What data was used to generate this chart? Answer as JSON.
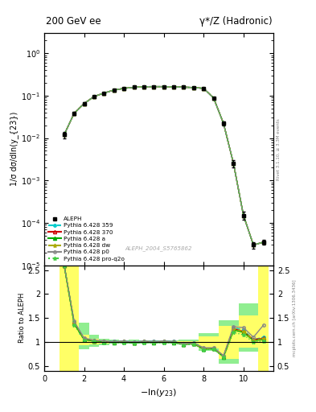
{
  "title_left": "200 GeV ee",
  "title_right": "γ*/Z (Hadronic)",
  "ylabel_main": "1/σ dσ/dln(y_{23})",
  "ylabel_ratio": "Ratio to ALEPH",
  "xlabel": "-ln(y_{23})",
  "right_label": "Rivet 3.1.10, ≥ 3.3M events",
  "right_label2": "mcplots.cern.ch [arXiv:1306.3436]",
  "ref_label": "ALEPH_2004_S5765862",
  "xlim": [
    0,
    11.5
  ],
  "ylim_main": [
    1e-05,
    3.0
  ],
  "ylim_ratio": [
    0.4,
    2.6
  ],
  "ratio_yticks": [
    0.5,
    1.0,
    1.5,
    2.0,
    2.5
  ],
  "data_x": [
    1.0,
    1.5,
    2.0,
    2.5,
    3.0,
    3.5,
    4.0,
    4.5,
    5.0,
    5.5,
    6.0,
    6.5,
    7.0,
    7.5,
    8.0,
    8.5,
    9.0,
    9.5,
    10.0,
    10.5,
    11.0
  ],
  "data_y": [
    0.012,
    0.038,
    0.065,
    0.095,
    0.115,
    0.135,
    0.148,
    0.157,
    0.162,
    0.163,
    0.163,
    0.16,
    0.158,
    0.155,
    0.148,
    0.088,
    0.022,
    0.0025,
    0.00015,
    3e-05,
    3.5e-05
  ],
  "data_yerr_low": [
    0.002,
    0.004,
    0.004,
    0.004,
    0.004,
    0.004,
    0.004,
    0.004,
    0.004,
    0.004,
    0.004,
    0.004,
    0.004,
    0.004,
    0.004,
    0.004,
    0.002,
    0.0005,
    3e-05,
    5e-06,
    5e-06
  ],
  "data_yerr_high": [
    0.002,
    0.004,
    0.004,
    0.004,
    0.004,
    0.004,
    0.004,
    0.004,
    0.004,
    0.004,
    0.004,
    0.004,
    0.004,
    0.004,
    0.004,
    0.004,
    0.002,
    0.0005,
    3e-05,
    5e-06,
    5e-06
  ],
  "mc_x": [
    1.0,
    1.5,
    2.0,
    2.5,
    3.0,
    3.5,
    4.0,
    4.5,
    5.0,
    5.5,
    6.0,
    6.5,
    7.0,
    7.5,
    8.0,
    8.5,
    9.0,
    9.5,
    10.0,
    10.5,
    11.0
  ],
  "mc359_y": [
    0.012,
    0.038,
    0.065,
    0.095,
    0.115,
    0.135,
    0.148,
    0.157,
    0.162,
    0.163,
    0.163,
    0.16,
    0.158,
    0.155,
    0.148,
    0.088,
    0.022,
    0.0025,
    0.00015,
    3e-05,
    3.5e-05
  ],
  "mc370_y": [
    0.012,
    0.038,
    0.065,
    0.095,
    0.115,
    0.135,
    0.148,
    0.157,
    0.162,
    0.163,
    0.163,
    0.16,
    0.158,
    0.155,
    0.148,
    0.088,
    0.022,
    0.0025,
    0.00015,
    3e-05,
    3.5e-05
  ],
  "mca_y": [
    0.012,
    0.038,
    0.065,
    0.095,
    0.115,
    0.135,
    0.148,
    0.157,
    0.162,
    0.163,
    0.163,
    0.16,
    0.158,
    0.155,
    0.148,
    0.088,
    0.022,
    0.0025,
    0.00015,
    3e-05,
    3.5e-05
  ],
  "mcdw_y": [
    0.012,
    0.038,
    0.065,
    0.095,
    0.115,
    0.135,
    0.148,
    0.157,
    0.162,
    0.163,
    0.163,
    0.16,
    0.158,
    0.155,
    0.148,
    0.088,
    0.022,
    0.0025,
    0.00015,
    3e-05,
    3.5e-05
  ],
  "mcp0_y": [
    0.012,
    0.038,
    0.065,
    0.095,
    0.115,
    0.135,
    0.148,
    0.157,
    0.162,
    0.163,
    0.163,
    0.16,
    0.158,
    0.155,
    0.148,
    0.088,
    0.022,
    0.0025,
    0.00015,
    3e-05,
    3.5e-05
  ],
  "mcproq2o_y": [
    0.012,
    0.038,
    0.065,
    0.095,
    0.115,
    0.135,
    0.148,
    0.157,
    0.162,
    0.163,
    0.163,
    0.16,
    0.158,
    0.155,
    0.148,
    0.088,
    0.022,
    0.0025,
    0.00015,
    3e-05,
    3.5e-05
  ],
  "ratio_mc359": [
    2.6,
    1.42,
    1.07,
    1.03,
    1.02,
    1.01,
    1.02,
    1.0,
    1.02,
    1.01,
    1.02,
    1.01,
    0.96,
    0.98,
    0.87,
    0.87,
    0.7,
    1.3,
    1.25,
    1.05,
    1.1
  ],
  "ratio_mc370": [
    2.6,
    1.4,
    1.06,
    1.02,
    1.01,
    1.0,
    1.01,
    0.99,
    1.01,
    1.0,
    1.01,
    1.0,
    0.95,
    0.97,
    0.86,
    0.87,
    0.7,
    1.28,
    1.22,
    1.05,
    1.08
  ],
  "ratio_mca": [
    2.6,
    1.38,
    1.05,
    1.02,
    1.0,
    0.99,
    1.0,
    0.98,
    1.0,
    0.99,
    1.0,
    0.99,
    0.95,
    0.96,
    0.85,
    0.86,
    0.69,
    1.25,
    1.2,
    1.03,
    1.05
  ],
  "ratio_mcdw": [
    2.6,
    1.41,
    1.07,
    1.03,
    1.01,
    1.0,
    1.01,
    0.99,
    1.01,
    1.0,
    1.01,
    1.0,
    0.96,
    0.97,
    0.86,
    0.87,
    0.7,
    1.27,
    1.22,
    1.04,
    1.07
  ],
  "ratio_mcp0": [
    2.6,
    1.43,
    1.08,
    1.04,
    1.02,
    1.01,
    1.02,
    1.0,
    1.02,
    1.01,
    1.02,
    1.01,
    0.96,
    0.98,
    0.88,
    0.88,
    0.72,
    1.32,
    1.3,
    1.1,
    1.35
  ],
  "ratio_mcproq2o": [
    2.6,
    1.36,
    1.04,
    1.01,
    0.99,
    0.98,
    0.99,
    0.97,
    0.99,
    0.98,
    0.99,
    0.98,
    0.94,
    0.95,
    0.84,
    0.85,
    0.68,
    1.2,
    1.15,
    1.0,
    1.02
  ],
  "band_x_edges": [
    0.75,
    1.25,
    1.75,
    2.25,
    2.75,
    3.25,
    3.75,
    4.25,
    4.75,
    5.25,
    5.75,
    6.25,
    6.75,
    7.25,
    7.75,
    8.25,
    8.75,
    9.25,
    9.75,
    10.25,
    10.75,
    11.25
  ],
  "band_green_low": [
    0.4,
    0.4,
    0.85,
    0.9,
    0.94,
    0.96,
    0.97,
    0.96,
    0.97,
    0.97,
    0.97,
    0.97,
    0.95,
    0.95,
    0.82,
    0.82,
    0.55,
    0.55,
    0.8,
    0.8,
    0.4,
    0.4
  ],
  "band_green_high": [
    2.6,
    2.6,
    1.4,
    1.15,
    1.07,
    1.05,
    1.04,
    1.05,
    1.04,
    1.04,
    1.04,
    1.04,
    1.05,
    1.05,
    1.18,
    1.18,
    1.45,
    1.45,
    1.8,
    1.8,
    2.6,
    2.6
  ],
  "band_yellow_low": [
    0.4,
    0.4,
    0.93,
    0.95,
    0.97,
    0.98,
    0.985,
    0.98,
    0.985,
    0.985,
    0.985,
    0.985,
    0.975,
    0.975,
    0.87,
    0.87,
    0.65,
    0.65,
    0.88,
    0.88,
    0.4,
    0.4
  ],
  "band_yellow_high": [
    2.6,
    2.6,
    1.15,
    1.07,
    1.03,
    1.02,
    1.015,
    1.02,
    1.015,
    1.015,
    1.015,
    1.015,
    1.025,
    1.025,
    1.12,
    1.12,
    1.33,
    1.33,
    1.55,
    1.55,
    2.6,
    2.6
  ],
  "colors": {
    "mc359": "#00cccc",
    "mc370": "#cc0000",
    "mca": "#00aa00",
    "mcdw": "#aaaa00",
    "mcp0": "#888888",
    "mcproq2o": "#44cc44"
  }
}
